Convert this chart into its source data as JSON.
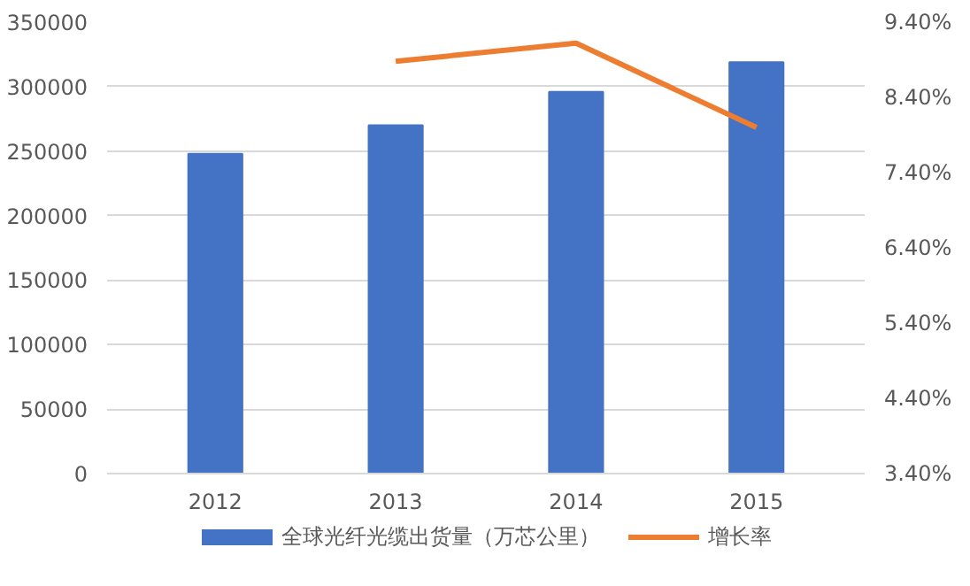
{
  "chart_data": {
    "type": "bar",
    "categories": [
      "2012",
      "2013",
      "2014",
      "2015"
    ],
    "series": [
      {
        "name": "全球光纤光缆出货量（万芯公里）",
        "color": "#4472c4",
        "values": [
          248000,
          270000,
          296000,
          319000
        ]
      },
      {
        "name": "增长率",
        "type": "line",
        "axis": "y2",
        "color": "#ed7d31",
        "values": [
          null,
          8.88,
          9.12,
          8.0
        ]
      }
    ],
    "ylim": [
      0,
      350000
    ],
    "yticks": [
      0,
      50000,
      100000,
      150000,
      200000,
      250000,
      300000,
      350000
    ],
    "y2lim": [
      3.4,
      9.4
    ],
    "y2ticks": [
      {
        "value": 3.4,
        "label": "3.40%"
      },
      {
        "value": 4.4,
        "label": "4.40%"
      },
      {
        "value": 5.4,
        "label": "5.40%"
      },
      {
        "value": 6.4,
        "label": "6.40%"
      },
      {
        "value": 7.4,
        "label": "7.40%"
      },
      {
        "value": 8.4,
        "label": "8.40%"
      },
      {
        "value": 9.4,
        "label": "9.40%"
      }
    ],
    "grid": "y",
    "legend": "bottom"
  }
}
